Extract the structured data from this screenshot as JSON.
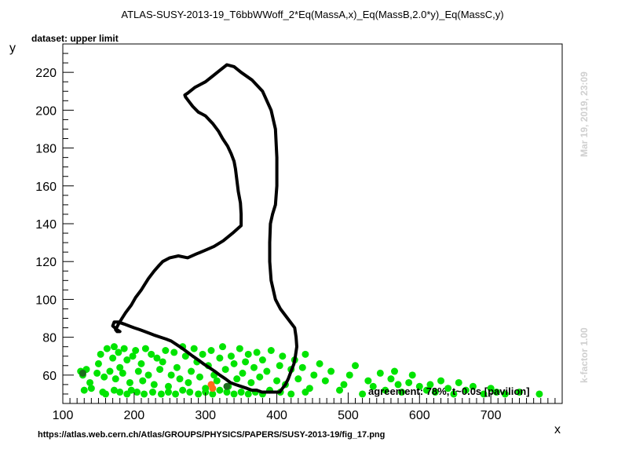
{
  "chart_data": {
    "type": "scatter",
    "title": "ATLAS-SUSY-2013-19_T6bbWWoff_2*Eq(MassA,x)_Eq(MassB,2.0*y)_Eq(MassC,y)",
    "xlabel": "x",
    "ylabel": "y",
    "xlim": [
      100,
      800
    ],
    "ylim": [
      45,
      235
    ],
    "x_ticks": [
      100,
      200,
      300,
      400,
      500,
      600,
      700
    ],
    "y_ticks": [
      60,
      80,
      100,
      120,
      140,
      160,
      180,
      200,
      220
    ],
    "grid": false,
    "legend": "none",
    "dataset_label": "dataset: upper limit",
    "annotation": "agreement: 78%, t~0.0s [pavilion]",
    "side_date": "Mar 19, 2019, 23:09",
    "side_kfactor": "k-factor 1.00",
    "footer_url": "https://atlas.web.cern.ch/Atlas/GROUPS/PHYSICS/PAPERS/SUSY-2013-19/fig_17.png",
    "colors": {
      "allowed": "#00e400",
      "excluded_dark": "#1d6b1d",
      "orange": "#ff6a1a",
      "contour": "#000000"
    },
    "series": [
      {
        "role": "allowed-points",
        "x": [
          125,
          128,
          133,
          138,
          148,
          150,
          153,
          158,
          162,
          166,
          170,
          172,
          174,
          178,
          180,
          184,
          186,
          190,
          194,
          198,
          202,
          206,
          210,
          212,
          216,
          220,
          224,
          228,
          232,
          236,
          240,
          244,
          248,
          252,
          256,
          260,
          264,
          268,
          272,
          276,
          280,
          284,
          288,
          292,
          296,
          300,
          304,
          308,
          312,
          316,
          320,
          324,
          328,
          332,
          336,
          340,
          344,
          348,
          352,
          356,
          360,
          364,
          368,
          372,
          376,
          380,
          386,
          392,
          400,
          404,
          408,
          412,
          420,
          425,
          430,
          436,
          440,
          446,
          452,
          460,
          468,
          476,
          488,
          494,
          502,
          510,
          520,
          528,
          535,
          545,
          552,
          560,
          565,
          570,
          575,
          585,
          590,
          600,
          610,
          615,
          622,
          630,
          640,
          648,
          655,
          665,
          675,
          690,
          700,
          708,
          720,
          740,
          768,
          130,
          140,
          156,
          160,
          172,
          180,
          190,
          196,
          204,
          214,
          226,
          238,
          248,
          258,
          268,
          278,
          290,
          300,
          310,
          320,
          330,
          340,
          350,
          360,
          370,
          380,
          390,
          405,
          420,
          440
        ],
        "y": [
          62,
          60,
          63,
          56,
          61,
          66,
          71,
          59,
          74,
          62,
          69,
          75,
          58,
          72,
          64,
          61,
          74,
          68,
          56,
          70,
          73,
          62,
          66,
          57,
          74,
          60,
          71,
          55,
          69,
          63,
          67,
          73,
          54,
          60,
          72,
          64,
          58,
          75,
          70,
          56,
          62,
          74,
          67,
          59,
          71,
          53,
          65,
          73,
          60,
          57,
          69,
          75,
          63,
          54,
          70,
          66,
          58,
          74,
          61,
          67,
          71,
          56,
          64,
          72,
          59,
          68,
          62,
          73,
          57,
          65,
          70,
          55,
          63,
          68,
          58,
          64,
          71,
          53,
          60,
          66,
          57,
          62,
          52,
          55,
          60,
          65,
          50,
          57,
          54,
          61,
          52,
          58,
          62,
          55,
          51,
          56,
          60,
          54,
          52,
          55,
          51,
          57,
          53,
          50,
          56,
          52,
          54,
          50,
          53,
          51,
          50,
          51,
          50,
          52,
          53,
          51,
          50,
          52,
          51,
          50,
          52,
          51,
          50,
          51,
          50,
          51,
          50,
          52,
          51,
          50,
          51,
          50,
          52,
          51,
          50,
          51,
          50,
          51,
          50,
          52,
          51,
          50,
          51
        ]
      },
      {
        "role": "excluded-points",
        "x": [
          128,
          330
        ],
        "y": [
          61,
          54
        ]
      },
      {
        "role": "orange-points",
        "x": [
          308,
          310
        ],
        "y": [
          55,
          53
        ]
      },
      {
        "role": "exclusion-contour",
        "x": [
          180,
          176,
          174,
          178,
          183,
          188,
          196,
          202,
          210,
          215,
          220,
          228,
          235,
          240,
          250,
          262,
          275,
          287,
          300,
          312,
          325,
          338,
          350,
          350,
          349,
          346,
          344,
          342,
          340,
          336,
          331,
          324,
          318,
          310,
          300,
          290,
          282,
          276,
          272,
          271,
          275,
          285,
          300,
          310,
          320,
          330,
          340,
          350,
          365,
          380,
          392,
          398,
          400,
          400,
          398,
          394,
          391,
          390,
          390,
          392,
          398,
          405,
          415,
          425,
          427,
          428,
          426,
          424,
          420,
          416,
          412,
          408,
          404,
          400,
          395,
          390,
          385,
          379,
          372,
          365,
          358,
          350,
          342,
          335,
          328,
          320,
          313,
          305,
          297,
          290,
          282,
          275,
          268,
          260,
          252,
          245,
          237,
          229,
          222,
          215,
          208,
          200,
          193,
          186,
          178,
          172,
          170,
          176,
          180
        ],
        "y": [
          83,
          83,
          84,
          87,
          90,
          93,
          97,
          101,
          105,
          108,
          111,
          115,
          118,
          120,
          122,
          123,
          122,
          124,
          126,
          128,
          131,
          135,
          139,
          145,
          151,
          157,
          163,
          169,
          173,
          177,
          181,
          185,
          189,
          193,
          197,
          199,
          202,
          205,
          207,
          208,
          209,
          212,
          215,
          218,
          221,
          224,
          223,
          220,
          216,
          210,
          200,
          190,
          175,
          160,
          150,
          145,
          140,
          130,
          120,
          110,
          100,
          95,
          90,
          85,
          80,
          75,
          70,
          66,
          62,
          58,
          55,
          53,
          51,
          51,
          51,
          51,
          51,
          51,
          52,
          52,
          53,
          54,
          55,
          56,
          58,
          60,
          62,
          64,
          66,
          68,
          70,
          72,
          74,
          76,
          78,
          79,
          80,
          81,
          82,
          83,
          84,
          85,
          86,
          87,
          88,
          88,
          86,
          84,
          83
        ]
      }
    ]
  }
}
